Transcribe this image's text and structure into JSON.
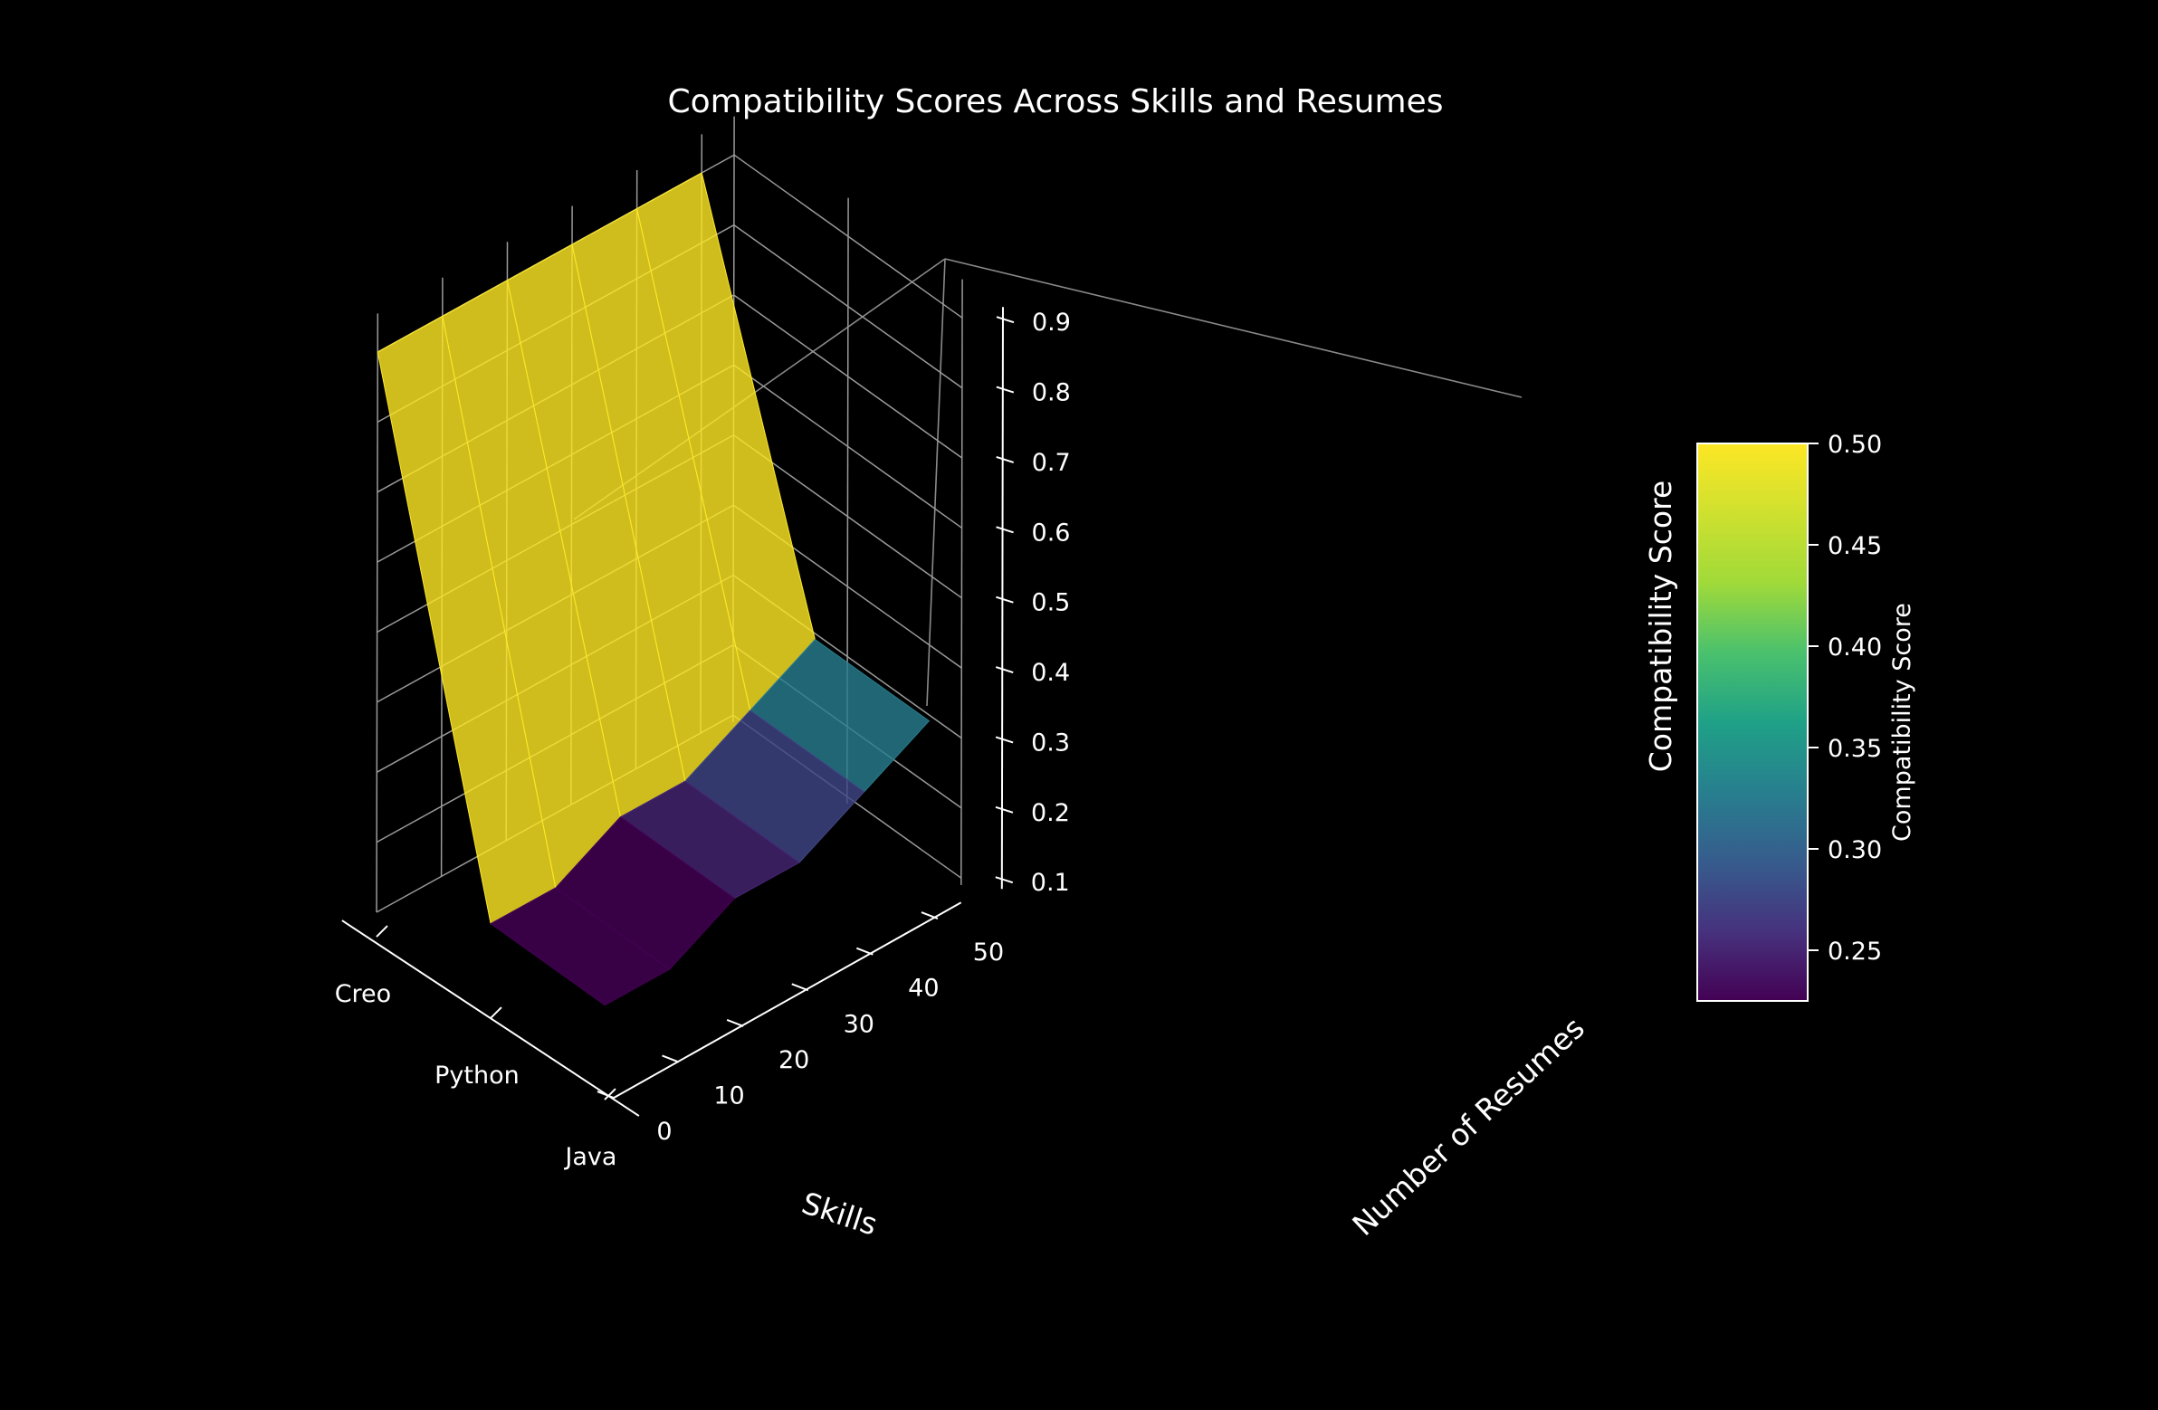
{
  "chart_data": {
    "type": "surface3d",
    "title": "Compatibility Scores Across Skills and Resumes",
    "xlabel": "Skills",
    "ylabel": "Number of Resumes",
    "zlabel": "Compatibility Score",
    "x_categories": [
      "Creo",
      "Python",
      "Java"
    ],
    "y_ticks": [
      0,
      10,
      20,
      30,
      40,
      50
    ],
    "z_ticks": [
      "0.1",
      "0.2",
      "0.3",
      "0.4",
      "0.5",
      "0.6",
      "0.7",
      "0.8",
      "0.9"
    ],
    "zlim": [
      0.1,
      0.9
    ],
    "ylim": [
      0,
      55
    ],
    "surface": {
      "y_values": [
        0,
        10,
        20,
        30,
        40,
        50
      ],
      "rows": [
        [
          0.9,
          0.2,
          0.2
        ],
        [
          0.9,
          0.2,
          0.2
        ],
        [
          0.9,
          0.25,
          0.25
        ],
        [
          0.9,
          0.25,
          0.25
        ],
        [
          0.9,
          0.3,
          0.3
        ],
        [
          0.9,
          0.35,
          0.35
        ]
      ]
    },
    "grid": true,
    "colormap": "viridis",
    "colorbar": {
      "label": "Compatibility Score",
      "ticks": [
        "0.25",
        "0.30",
        "0.35",
        "0.40",
        "0.45",
        "0.50"
      ],
      "range": [
        0.225,
        0.5
      ],
      "position": "right"
    },
    "colors": {
      "background": "#000000",
      "text": "#ffffff",
      "high": "#d0c247",
      "mid": "#35607a",
      "low": "#34064d"
    }
  }
}
